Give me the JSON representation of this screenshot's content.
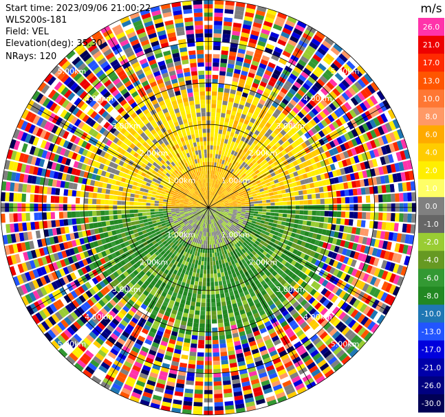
{
  "info": {
    "start_time": "Start time: 2023/09/06 21:00:22",
    "instrument": "WLS200s-181",
    "field": "Field: VEL",
    "elevation": "Elevation(deg): 35.30",
    "nrays": "NRays: 120"
  },
  "colorbar": {
    "unit": "m/s",
    "ticks": [
      "26.0",
      "21.0",
      "17.0",
      "13.0",
      "10.0",
      "8.0",
      "6.0",
      "4.0",
      "2.0",
      "1.0",
      "0.0",
      "-1.0",
      "-2.0",
      "-4.0",
      "-6.0",
      "-8.0",
      "-10.0",
      "-13.0",
      "-17.0",
      "-21.0",
      "-26.0",
      "-30.0"
    ],
    "colors": [
      "#ff33aa",
      "#ee0000",
      "#ff2a00",
      "#ff5500",
      "#ff7733",
      "#ff9966",
      "#ffaa00",
      "#ffcc00",
      "#ffee00",
      "#ffff66",
      "#808080",
      "#666666",
      "#99cc33",
      "#669922",
      "#339933",
      "#228822",
      "#1f77b4",
      "#2255ff",
      "#0000dd",
      "#0000aa",
      "#000080",
      "#000055"
    ]
  },
  "chart_data": {
    "type": "ppi-velocity",
    "field": "VEL",
    "unit": "m/s",
    "n_rays": 120,
    "ring_labels": [
      "1.00km",
      "2.00km",
      "3.00km",
      "4.00km",
      "5.00km"
    ],
    "max_range_km": 5.0,
    "rings_km": [
      1,
      2,
      3,
      4,
      5
    ]
  }
}
